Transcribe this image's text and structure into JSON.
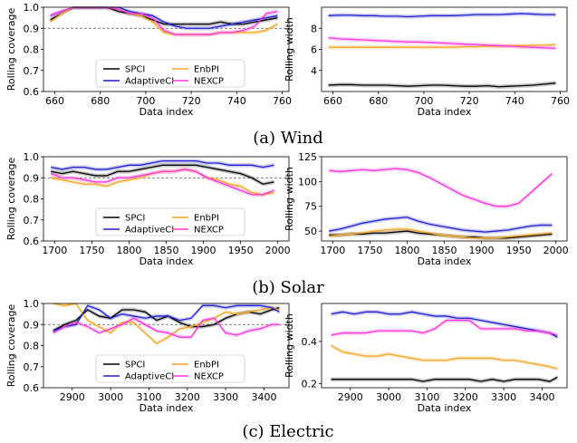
{
  "captions": [
    "(a) Wind",
    "(b) Solar",
    "(c) Electric"
  ],
  "series_colors": {
    "SPCI": "#000000",
    "EnbPI": "#f5a623",
    "AdaptiveCI": "#1f1fcf",
    "NEXCP": "#ff33dd"
  },
  "chart_data": [
    {
      "type": "line",
      "xlabel": "Data index",
      "ylabel": "Rolling coverage",
      "xlim": [
        655,
        763
      ],
      "ylim": [
        0.6,
        1.0
      ],
      "xticks": [
        660,
        680,
        700,
        720,
        740,
        760
      ],
      "yticks": [
        0.6,
        0.7,
        0.8,
        0.9,
        1.0
      ],
      "reference_line": 0.9,
      "legend": [
        "SPCI",
        "EnbPI",
        "AdaptiveCI",
        "NEXCP"
      ],
      "x": [
        658,
        663,
        668,
        673,
        678,
        683,
        688,
        693,
        698,
        703,
        708,
        713,
        718,
        723,
        728,
        733,
        738,
        743,
        748,
        753,
        758
      ],
      "series": [
        {
          "name": "SPCI",
          "values": [
            0.94,
            0.97,
            1.0,
            1.0,
            1.0,
            1.0,
            0.98,
            0.97,
            0.96,
            0.94,
            0.92,
            0.92,
            0.92,
            0.92,
            0.92,
            0.93,
            0.92,
            0.92,
            0.93,
            0.94,
            0.95
          ]
        },
        {
          "name": "EnbPI",
          "values": [
            0.93,
            0.97,
            1.0,
            1.0,
            1.0,
            1.0,
            0.99,
            0.97,
            0.96,
            0.93,
            0.88,
            0.87,
            0.87,
            0.87,
            0.87,
            0.88,
            0.88,
            0.88,
            0.88,
            0.89,
            0.92
          ]
        },
        {
          "name": "AdaptiveCI",
          "values": [
            0.96,
            0.98,
            1.0,
            1.0,
            1.0,
            1.0,
            1.0,
            0.98,
            0.97,
            0.96,
            0.93,
            0.91,
            0.9,
            0.9,
            0.9,
            0.91,
            0.92,
            0.93,
            0.94,
            0.95,
            0.96
          ]
        },
        {
          "name": "NEXCP",
          "values": [
            0.96,
            0.98,
            1.0,
            1.0,
            1.0,
            1.0,
            0.99,
            0.97,
            0.97,
            0.95,
            0.89,
            0.87,
            0.87,
            0.87,
            0.87,
            0.88,
            0.88,
            0.89,
            0.91,
            0.97,
            0.98
          ]
        }
      ]
    },
    {
      "type": "line",
      "xlabel": "Data index",
      "ylabel": "Rolling width",
      "xlim": [
        655,
        763
      ],
      "ylim": [
        2,
        10
      ],
      "xticks": [
        660,
        680,
        700,
        720,
        740,
        760
      ],
      "yticks": [
        4,
        6,
        8
      ],
      "x": [
        658,
        663,
        668,
        673,
        678,
        683,
        688,
        693,
        698,
        703,
        708,
        713,
        718,
        723,
        728,
        733,
        738,
        743,
        748,
        753,
        758
      ],
      "series": [
        {
          "name": "SPCI",
          "values": [
            2.6,
            2.65,
            2.65,
            2.6,
            2.6,
            2.6,
            2.55,
            2.5,
            2.55,
            2.6,
            2.6,
            2.55,
            2.5,
            2.5,
            2.55,
            2.45,
            2.5,
            2.55,
            2.6,
            2.7,
            2.8
          ]
        },
        {
          "name": "EnbPI",
          "values": [
            6.2,
            6.2,
            6.2,
            6.2,
            6.2,
            6.2,
            6.2,
            6.2,
            6.2,
            6.2,
            6.2,
            6.2,
            6.25,
            6.25,
            6.3,
            6.3,
            6.35,
            6.35,
            6.4,
            6.4,
            6.45
          ]
        },
        {
          "name": "AdaptiveCI",
          "values": [
            9.2,
            9.25,
            9.25,
            9.2,
            9.2,
            9.15,
            9.15,
            9.1,
            9.15,
            9.2,
            9.2,
            9.2,
            9.25,
            9.3,
            9.3,
            9.3,
            9.35,
            9.4,
            9.35,
            9.3,
            9.3
          ]
        },
        {
          "name": "NEXCP",
          "values": [
            7.1,
            7.0,
            6.95,
            6.9,
            6.85,
            6.8,
            6.75,
            6.7,
            6.7,
            6.65,
            6.6,
            6.55,
            6.5,
            6.45,
            6.4,
            6.35,
            6.3,
            6.25,
            6.2,
            6.15,
            6.1
          ]
        }
      ]
    },
    {
      "type": "line",
      "xlabel": "Data index",
      "ylabel": "Rolling coverage",
      "xlim": [
        1685,
        2015
      ],
      "ylim": [
        0.6,
        1.0
      ],
      "xticks": [
        1700,
        1750,
        1800,
        1850,
        1900,
        1950,
        2000
      ],
      "yticks": [
        0.6,
        0.7,
        0.8,
        0.9,
        1.0
      ],
      "reference_line": 0.9,
      "legend": [
        "SPCI",
        "EnbPI",
        "AdaptiveCI",
        "NEXCP"
      ],
      "x": [
        1695,
        1710,
        1725,
        1740,
        1755,
        1770,
        1785,
        1800,
        1815,
        1830,
        1845,
        1860,
        1875,
        1890,
        1905,
        1920,
        1935,
        1950,
        1965,
        1980,
        1995
      ],
      "series": [
        {
          "name": "SPCI",
          "values": [
            0.93,
            0.92,
            0.93,
            0.92,
            0.91,
            0.91,
            0.93,
            0.93,
            0.94,
            0.95,
            0.96,
            0.96,
            0.96,
            0.96,
            0.95,
            0.94,
            0.93,
            0.92,
            0.9,
            0.87,
            0.88
          ]
        },
        {
          "name": "EnbPI",
          "values": [
            0.9,
            0.89,
            0.88,
            0.87,
            0.87,
            0.86,
            0.88,
            0.89,
            0.9,
            0.92,
            0.93,
            0.93,
            0.94,
            0.93,
            0.9,
            0.89,
            0.87,
            0.86,
            0.83,
            0.82,
            0.83
          ]
        },
        {
          "name": "AdaptiveCI",
          "values": [
            0.95,
            0.94,
            0.95,
            0.95,
            0.94,
            0.94,
            0.95,
            0.96,
            0.96,
            0.97,
            0.98,
            0.98,
            0.98,
            0.98,
            0.97,
            0.97,
            0.96,
            0.96,
            0.96,
            0.95,
            0.96
          ]
        },
        {
          "name": "NEXCP",
          "values": [
            0.92,
            0.9,
            0.9,
            0.89,
            0.88,
            0.88,
            0.9,
            0.9,
            0.91,
            0.92,
            0.93,
            0.93,
            0.94,
            0.93,
            0.9,
            0.88,
            0.86,
            0.84,
            0.82,
            0.82,
            0.84
          ]
        }
      ]
    },
    {
      "type": "line",
      "xlabel": "Data index",
      "ylabel": "Rolling width",
      "xlim": [
        1685,
        2015
      ],
      "ylim": [
        40,
        125
      ],
      "xticks": [
        1700,
        1750,
        1800,
        1850,
        1900,
        1950,
        2000
      ],
      "yticks": [
        50,
        75,
        100,
        125
      ],
      "x": [
        1695,
        1710,
        1725,
        1740,
        1755,
        1770,
        1785,
        1800,
        1815,
        1830,
        1845,
        1860,
        1875,
        1890,
        1905,
        1920,
        1935,
        1950,
        1965,
        1980,
        1995
      ],
      "series": [
        {
          "name": "SPCI",
          "values": [
            46,
            46,
            47,
            47,
            48,
            48,
            49,
            50,
            48,
            47,
            46,
            45,
            44,
            44,
            43,
            43,
            43,
            44,
            45,
            46,
            47
          ]
        },
        {
          "name": "EnbPI",
          "values": [
            45,
            46,
            47,
            48,
            50,
            51,
            52,
            52,
            50,
            48,
            46,
            45,
            44,
            43,
            43,
            43,
            44,
            45,
            46,
            47,
            48
          ]
        },
        {
          "name": "AdaptiveCI",
          "values": [
            50,
            52,
            55,
            58,
            60,
            62,
            63,
            64,
            60,
            57,
            55,
            53,
            51,
            50,
            49,
            50,
            51,
            53,
            55,
            56,
            56
          ]
        },
        {
          "name": "NEXCP",
          "values": [
            111,
            110,
            111,
            112,
            111,
            112,
            113,
            112,
            109,
            104,
            98,
            92,
            86,
            82,
            78,
            75,
            75,
            78,
            88,
            98,
            108
          ]
        }
      ]
    },
    {
      "type": "line",
      "xlabel": "Data index",
      "ylabel": "Rolling coverage",
      "xlim": [
        2825,
        3465
      ],
      "ylim": [
        0.6,
        1.0
      ],
      "xticks": [
        2900,
        3000,
        3100,
        3200,
        3300,
        3400
      ],
      "yticks": [
        0.6,
        0.7,
        0.8,
        0.9,
        1.0
      ],
      "reference_line": 0.9,
      "legend": [
        "SPCI",
        "EnbPI",
        "AdaptiveCI",
        "NEXCP"
      ],
      "x": [
        2850,
        2880,
        2910,
        2940,
        2970,
        3000,
        3030,
        3060,
        3090,
        3120,
        3150,
        3180,
        3210,
        3240,
        3270,
        3300,
        3330,
        3360,
        3390,
        3420,
        3440
      ],
      "series": [
        {
          "name": "SPCI",
          "values": [
            0.87,
            0.9,
            0.92,
            0.97,
            0.94,
            0.93,
            0.97,
            0.97,
            0.96,
            0.92,
            0.94,
            0.91,
            0.89,
            0.89,
            0.9,
            0.93,
            0.95,
            0.96,
            0.95,
            0.97,
            0.98
          ]
        },
        {
          "name": "EnbPI",
          "values": [
            1.0,
            0.99,
            1.0,
            0.92,
            0.89,
            0.86,
            0.91,
            0.91,
            0.86,
            0.81,
            0.84,
            0.88,
            0.89,
            0.91,
            0.93,
            0.96,
            0.95,
            0.96,
            0.97,
            0.98,
            0.97
          ]
        },
        {
          "name": "AdaptiveCI",
          "values": [
            0.87,
            0.89,
            0.9,
            0.99,
            0.97,
            0.93,
            0.95,
            0.94,
            0.93,
            0.94,
            0.94,
            0.92,
            0.93,
            0.99,
            0.99,
            0.98,
            0.99,
            0.99,
            0.99,
            0.98,
            0.96
          ]
        },
        {
          "name": "NEXCP",
          "values": [
            0.86,
            0.89,
            0.91,
            0.89,
            0.86,
            0.88,
            0.9,
            0.93,
            0.9,
            0.87,
            0.86,
            0.84,
            0.84,
            0.92,
            0.93,
            0.86,
            0.85,
            0.87,
            0.88,
            0.9,
            0.9
          ]
        }
      ]
    },
    {
      "type": "line",
      "xlabel": "Data index",
      "ylabel": "Rolling width",
      "xlim": [
        2825,
        3465
      ],
      "ylim": [
        0.18,
        0.58
      ],
      "xticks": [
        2900,
        3000,
        3100,
        3200,
        3300,
        3400
      ],
      "yticks": [
        0.2,
        0.4
      ],
      "x": [
        2850,
        2880,
        2910,
        2940,
        2970,
        3000,
        3030,
        3060,
        3090,
        3120,
        3150,
        3180,
        3210,
        3240,
        3270,
        3300,
        3330,
        3360,
        3390,
        3420,
        3440
      ],
      "series": [
        {
          "name": "SPCI",
          "values": [
            0.22,
            0.22,
            0.22,
            0.22,
            0.22,
            0.22,
            0.22,
            0.22,
            0.21,
            0.22,
            0.22,
            0.22,
            0.22,
            0.21,
            0.22,
            0.21,
            0.22,
            0.22,
            0.22,
            0.21,
            0.23
          ]
        },
        {
          "name": "EnbPI",
          "values": [
            0.38,
            0.35,
            0.34,
            0.33,
            0.33,
            0.34,
            0.33,
            0.32,
            0.31,
            0.31,
            0.31,
            0.32,
            0.32,
            0.32,
            0.32,
            0.31,
            0.31,
            0.3,
            0.29,
            0.28,
            0.27
          ]
        },
        {
          "name": "AdaptiveCI",
          "values": [
            0.53,
            0.54,
            0.53,
            0.54,
            0.54,
            0.53,
            0.53,
            0.54,
            0.53,
            0.52,
            0.52,
            0.51,
            0.51,
            0.5,
            0.49,
            0.48,
            0.47,
            0.46,
            0.45,
            0.44,
            0.42
          ]
        },
        {
          "name": "NEXCP",
          "values": [
            0.43,
            0.44,
            0.44,
            0.44,
            0.45,
            0.45,
            0.45,
            0.45,
            0.44,
            0.46,
            0.5,
            0.5,
            0.5,
            0.46,
            0.46,
            0.46,
            0.46,
            0.45,
            0.45,
            0.44,
            0.43
          ]
        }
      ]
    }
  ]
}
